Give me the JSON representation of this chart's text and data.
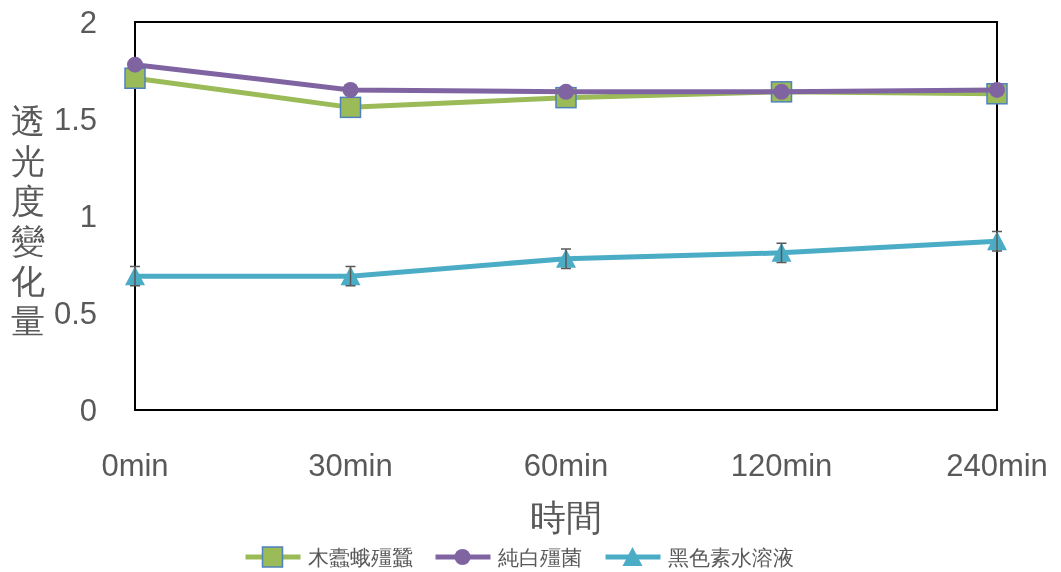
{
  "chart_data": {
    "type": "line",
    "xlabel": "時間",
    "ylabel": "透光度變化量",
    "categories": [
      "0min",
      "30min",
      "60min",
      "120min",
      "240min"
    ],
    "series": [
      {
        "name": "木蠹蛾殭蠶",
        "color": "#9bbb59",
        "marker": "square",
        "values": [
          1.71,
          1.56,
          1.61,
          1.64,
          1.63
        ]
      },
      {
        "name": "純白殭菌",
        "color": "#8064a2",
        "marker": "circle",
        "values": [
          1.78,
          1.65,
          1.64,
          1.64,
          1.65
        ]
      },
      {
        "name": "黑色素水溶液",
        "color": "#4bacc6",
        "marker": "triangle",
        "values": [
          0.69,
          0.69,
          0.78,
          0.81,
          0.87
        ],
        "errors": [
          0.05,
          0.05,
          0.05,
          0.05,
          0.05
        ]
      }
    ],
    "ylim": [
      0,
      2
    ],
    "yticks": [
      0,
      0.5,
      1,
      1.5,
      2
    ],
    "grid": false,
    "legend": "bottom",
    "line_style": "solid"
  }
}
